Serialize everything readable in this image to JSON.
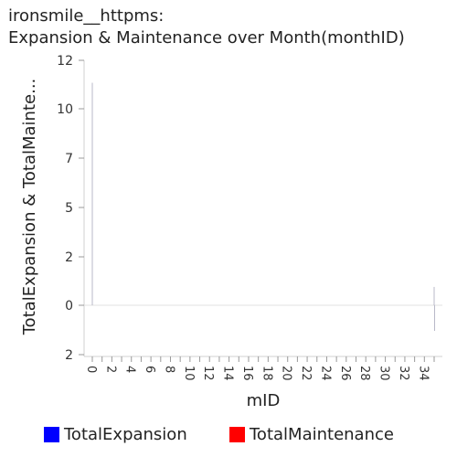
{
  "chart_data": {
    "type": "bar",
    "title": "ironsmile__httpms:\nExpansion & Maintenance over Month(monthID)",
    "xlabel": "mID",
    "ylabel": "TotalExpansion & TotalMainte...",
    "ytick_labels": [
      "12",
      "10",
      "7",
      "5",
      "2",
      "0",
      "2"
    ],
    "ytick_values": [
      12,
      10,
      7,
      5,
      2,
      0,
      -2
    ],
    "ylim": [
      -2,
      12
    ],
    "xtick_labels": [
      "0",
      "2",
      "4",
      "6",
      "8",
      "10",
      "12",
      "14",
      "16",
      "18",
      "20",
      "22",
      "24",
      "26",
      "28",
      "30",
      "32",
      "34"
    ],
    "categories": [
      0,
      1,
      2,
      3,
      4,
      5,
      6,
      7,
      8,
      9,
      10,
      11,
      12,
      13,
      14,
      15,
      16,
      17,
      18,
      19,
      20,
      21,
      22,
      23,
      24,
      25,
      26,
      27,
      28,
      29,
      30,
      31,
      32,
      33,
      34,
      35
    ],
    "series": [
      {
        "name": "TotalExpansion",
        "color": "#0000ff",
        "values": [
          10.9,
          0,
          0,
          0,
          0,
          0,
          0,
          0,
          0,
          0,
          0,
          0,
          0,
          0,
          0,
          0,
          0,
          0,
          0,
          0,
          0,
          0,
          0,
          0,
          0,
          0,
          0,
          0,
          0,
          0,
          0,
          0,
          0,
          0,
          0,
          0.9
        ]
      },
      {
        "name": "TotalMaintenance",
        "color": "#ff0000",
        "values": [
          0,
          0,
          0,
          0,
          0,
          0,
          0,
          0,
          0,
          0,
          0,
          0,
          0,
          0,
          0,
          0,
          0,
          0,
          0,
          0,
          0,
          0,
          0,
          0,
          0,
          0,
          0,
          0,
          0,
          0,
          0,
          0,
          0,
          0,
          0,
          -1
        ]
      }
    ],
    "grid": false,
    "legend": "bottom"
  }
}
